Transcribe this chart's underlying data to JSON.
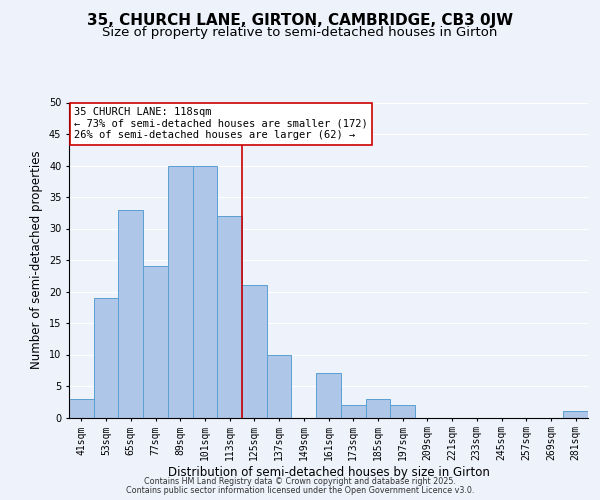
{
  "title": "35, CHURCH LANE, GIRTON, CAMBRIDGE, CB3 0JW",
  "subtitle": "Size of property relative to semi-detached houses in Girton",
  "xlabel": "Distribution of semi-detached houses by size in Girton",
  "ylabel": "Number of semi-detached properties",
  "categories": [
    "41sqm",
    "53sqm",
    "65sqm",
    "77sqm",
    "89sqm",
    "101sqm",
    "113sqm",
    "125sqm",
    "137sqm",
    "149sqm",
    "161sqm",
    "173sqm",
    "185sqm",
    "197sqm",
    "209sqm",
    "221sqm",
    "233sqm",
    "245sqm",
    "257sqm",
    "269sqm",
    "281sqm"
  ],
  "values": [
    3,
    19,
    33,
    24,
    40,
    40,
    32,
    21,
    10,
    0,
    7,
    2,
    3,
    2,
    0,
    0,
    0,
    0,
    0,
    0,
    1
  ],
  "bar_color": "#aec6e8",
  "bar_edge_color": "#5a9fd4",
  "vline_x": 6.5,
  "vline_color": "#cc0000",
  "annotation_title": "35 CHURCH LANE: 118sqm",
  "annotation_line1": "← 73% of semi-detached houses are smaller (172)",
  "annotation_line2": "26% of semi-detached houses are larger (62) →",
  "annotation_box_color": "#ffffff",
  "annotation_box_edge": "#cc0000",
  "ylim": [
    0,
    50
  ],
  "yticks": [
    0,
    5,
    10,
    15,
    20,
    25,
    30,
    35,
    40,
    45,
    50
  ],
  "background_color": "#eef2fb",
  "grid_color": "#ffffff",
  "footer_line1": "Contains HM Land Registry data © Crown copyright and database right 2025.",
  "footer_line2": "Contains public sector information licensed under the Open Government Licence v3.0.",
  "title_fontsize": 11,
  "subtitle_fontsize": 9.5,
  "tick_fontsize": 7,
  "xlabel_fontsize": 8.5,
  "ylabel_fontsize": 8.5,
  "annotation_fontsize": 7.5,
  "footer_fontsize": 5.8
}
